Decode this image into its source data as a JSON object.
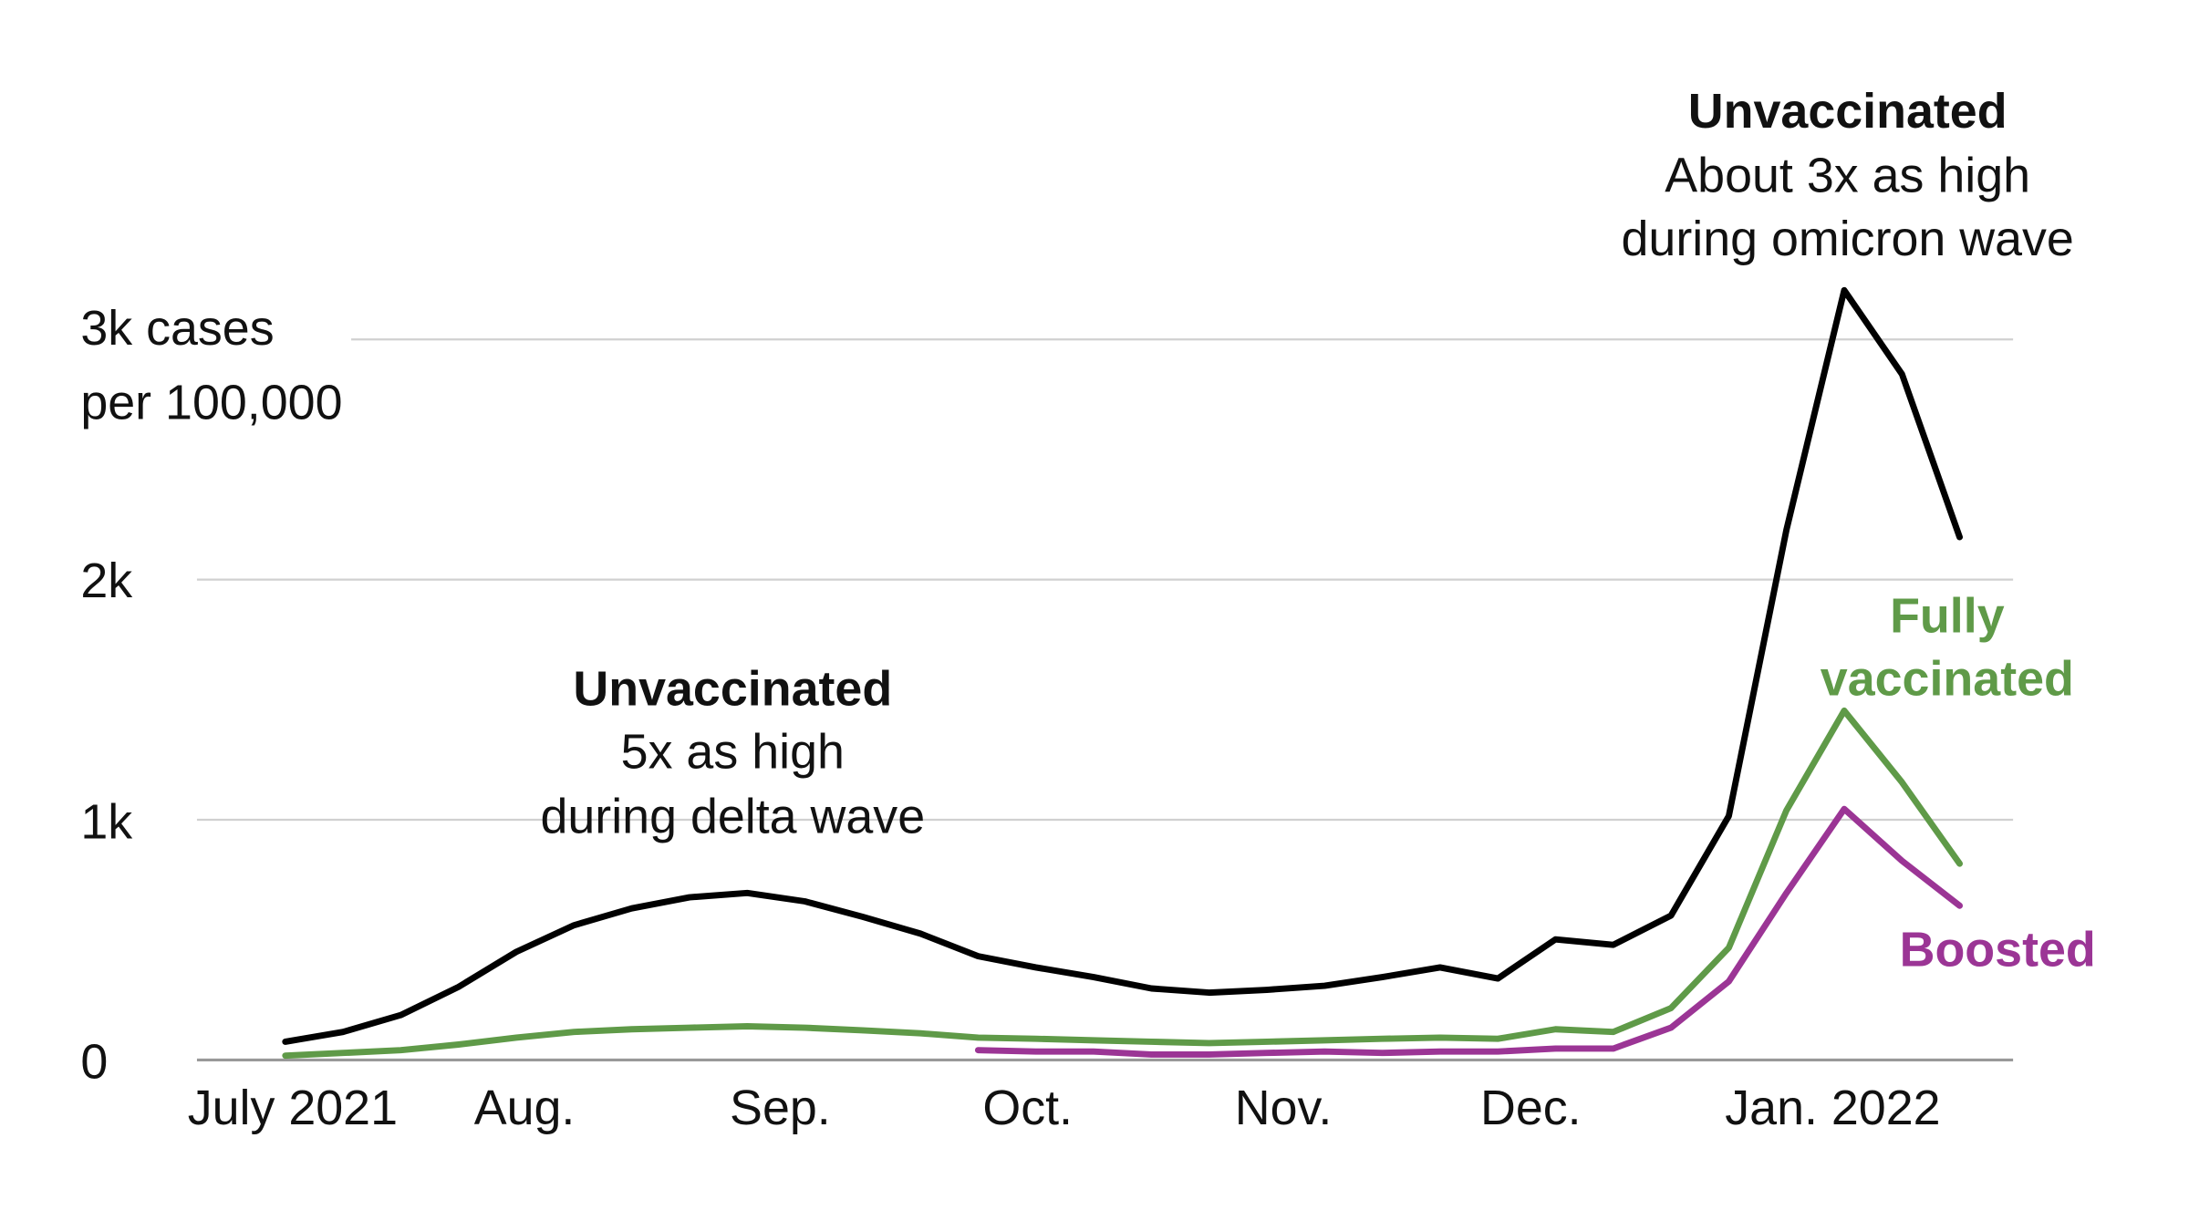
{
  "chart_data": {
    "type": "line",
    "title": "",
    "xlabel": "",
    "ylabel": "",
    "y_unit_label": [
      "3k cases",
      "per 100,000"
    ],
    "ylim": [
      0,
      3300
    ],
    "yticks": [
      0,
      1000,
      2000,
      3000
    ],
    "ytick_labels": [
      "0",
      "1k",
      "2k",
      "3k cases"
    ],
    "xtick_labels": [
      "July 2021",
      "Aug.",
      "Sep.",
      "Oct.",
      "Nov.",
      "Dec.",
      "Jan. 2022"
    ],
    "xtick_dates": [
      "2021-07-01",
      "2021-08-01",
      "2021-09-01",
      "2021-10-01",
      "2021-11-01",
      "2021-12-01",
      "2022-01-01"
    ],
    "grid": true,
    "x": [
      "2021-07-03",
      "2021-07-10",
      "2021-07-17",
      "2021-07-24",
      "2021-07-31",
      "2021-08-07",
      "2021-08-14",
      "2021-08-21",
      "2021-08-28",
      "2021-09-04",
      "2021-09-11",
      "2021-09-18",
      "2021-09-25",
      "2021-10-02",
      "2021-10-09",
      "2021-10-16",
      "2021-10-23",
      "2021-10-30",
      "2021-11-06",
      "2021-11-13",
      "2021-11-20",
      "2021-11-27",
      "2021-12-04",
      "2021-12-11",
      "2021-12-18",
      "2021-12-25",
      "2022-01-01",
      "2022-01-08",
      "2022-01-15",
      "2022-01-22"
    ],
    "series": [
      {
        "name": "Unvaccinated",
        "color": "#000000",
        "values": [
          76,
          117,
          187,
          304,
          450,
          561,
          631,
          677,
          695,
          660,
          596,
          526,
          432,
          385,
          345,
          298,
          280,
          292,
          309,
          345,
          385,
          339,
          502,
          479,
          601,
          1016,
          2207,
          3205,
          2855,
          2177
        ]
      },
      {
        "name": "Fully vaccinated",
        "color": "#5f9a48",
        "values": [
          18,
          29,
          41,
          64,
          93,
          117,
          128,
          134,
          140,
          134,
          123,
          111,
          93,
          88,
          82,
          76,
          70,
          76,
          82,
          88,
          93,
          88,
          128,
          117,
          216,
          467,
          1039,
          1454,
          1156,
          817
        ]
      },
      {
        "name": "Boosted",
        "color": "#9b3595",
        "values": [
          null,
          null,
          null,
          null,
          null,
          null,
          null,
          null,
          null,
          null,
          null,
          null,
          41,
          35,
          35,
          23,
          23,
          29,
          35,
          29,
          35,
          35,
          47,
          47,
          134,
          327,
          695,
          1045,
          829,
          642
        ]
      }
    ],
    "annotations": {
      "delta": {
        "title": "Unvaccinated",
        "line1": "5x as high",
        "line2": "during delta wave"
      },
      "omicron": {
        "title": "Unvaccinated",
        "line1": "About 3x as high",
        "line2": "during omicron wave"
      },
      "fully_label": [
        "Fully",
        "vaccinated"
      ],
      "boosted_label": "Boosted"
    }
  }
}
